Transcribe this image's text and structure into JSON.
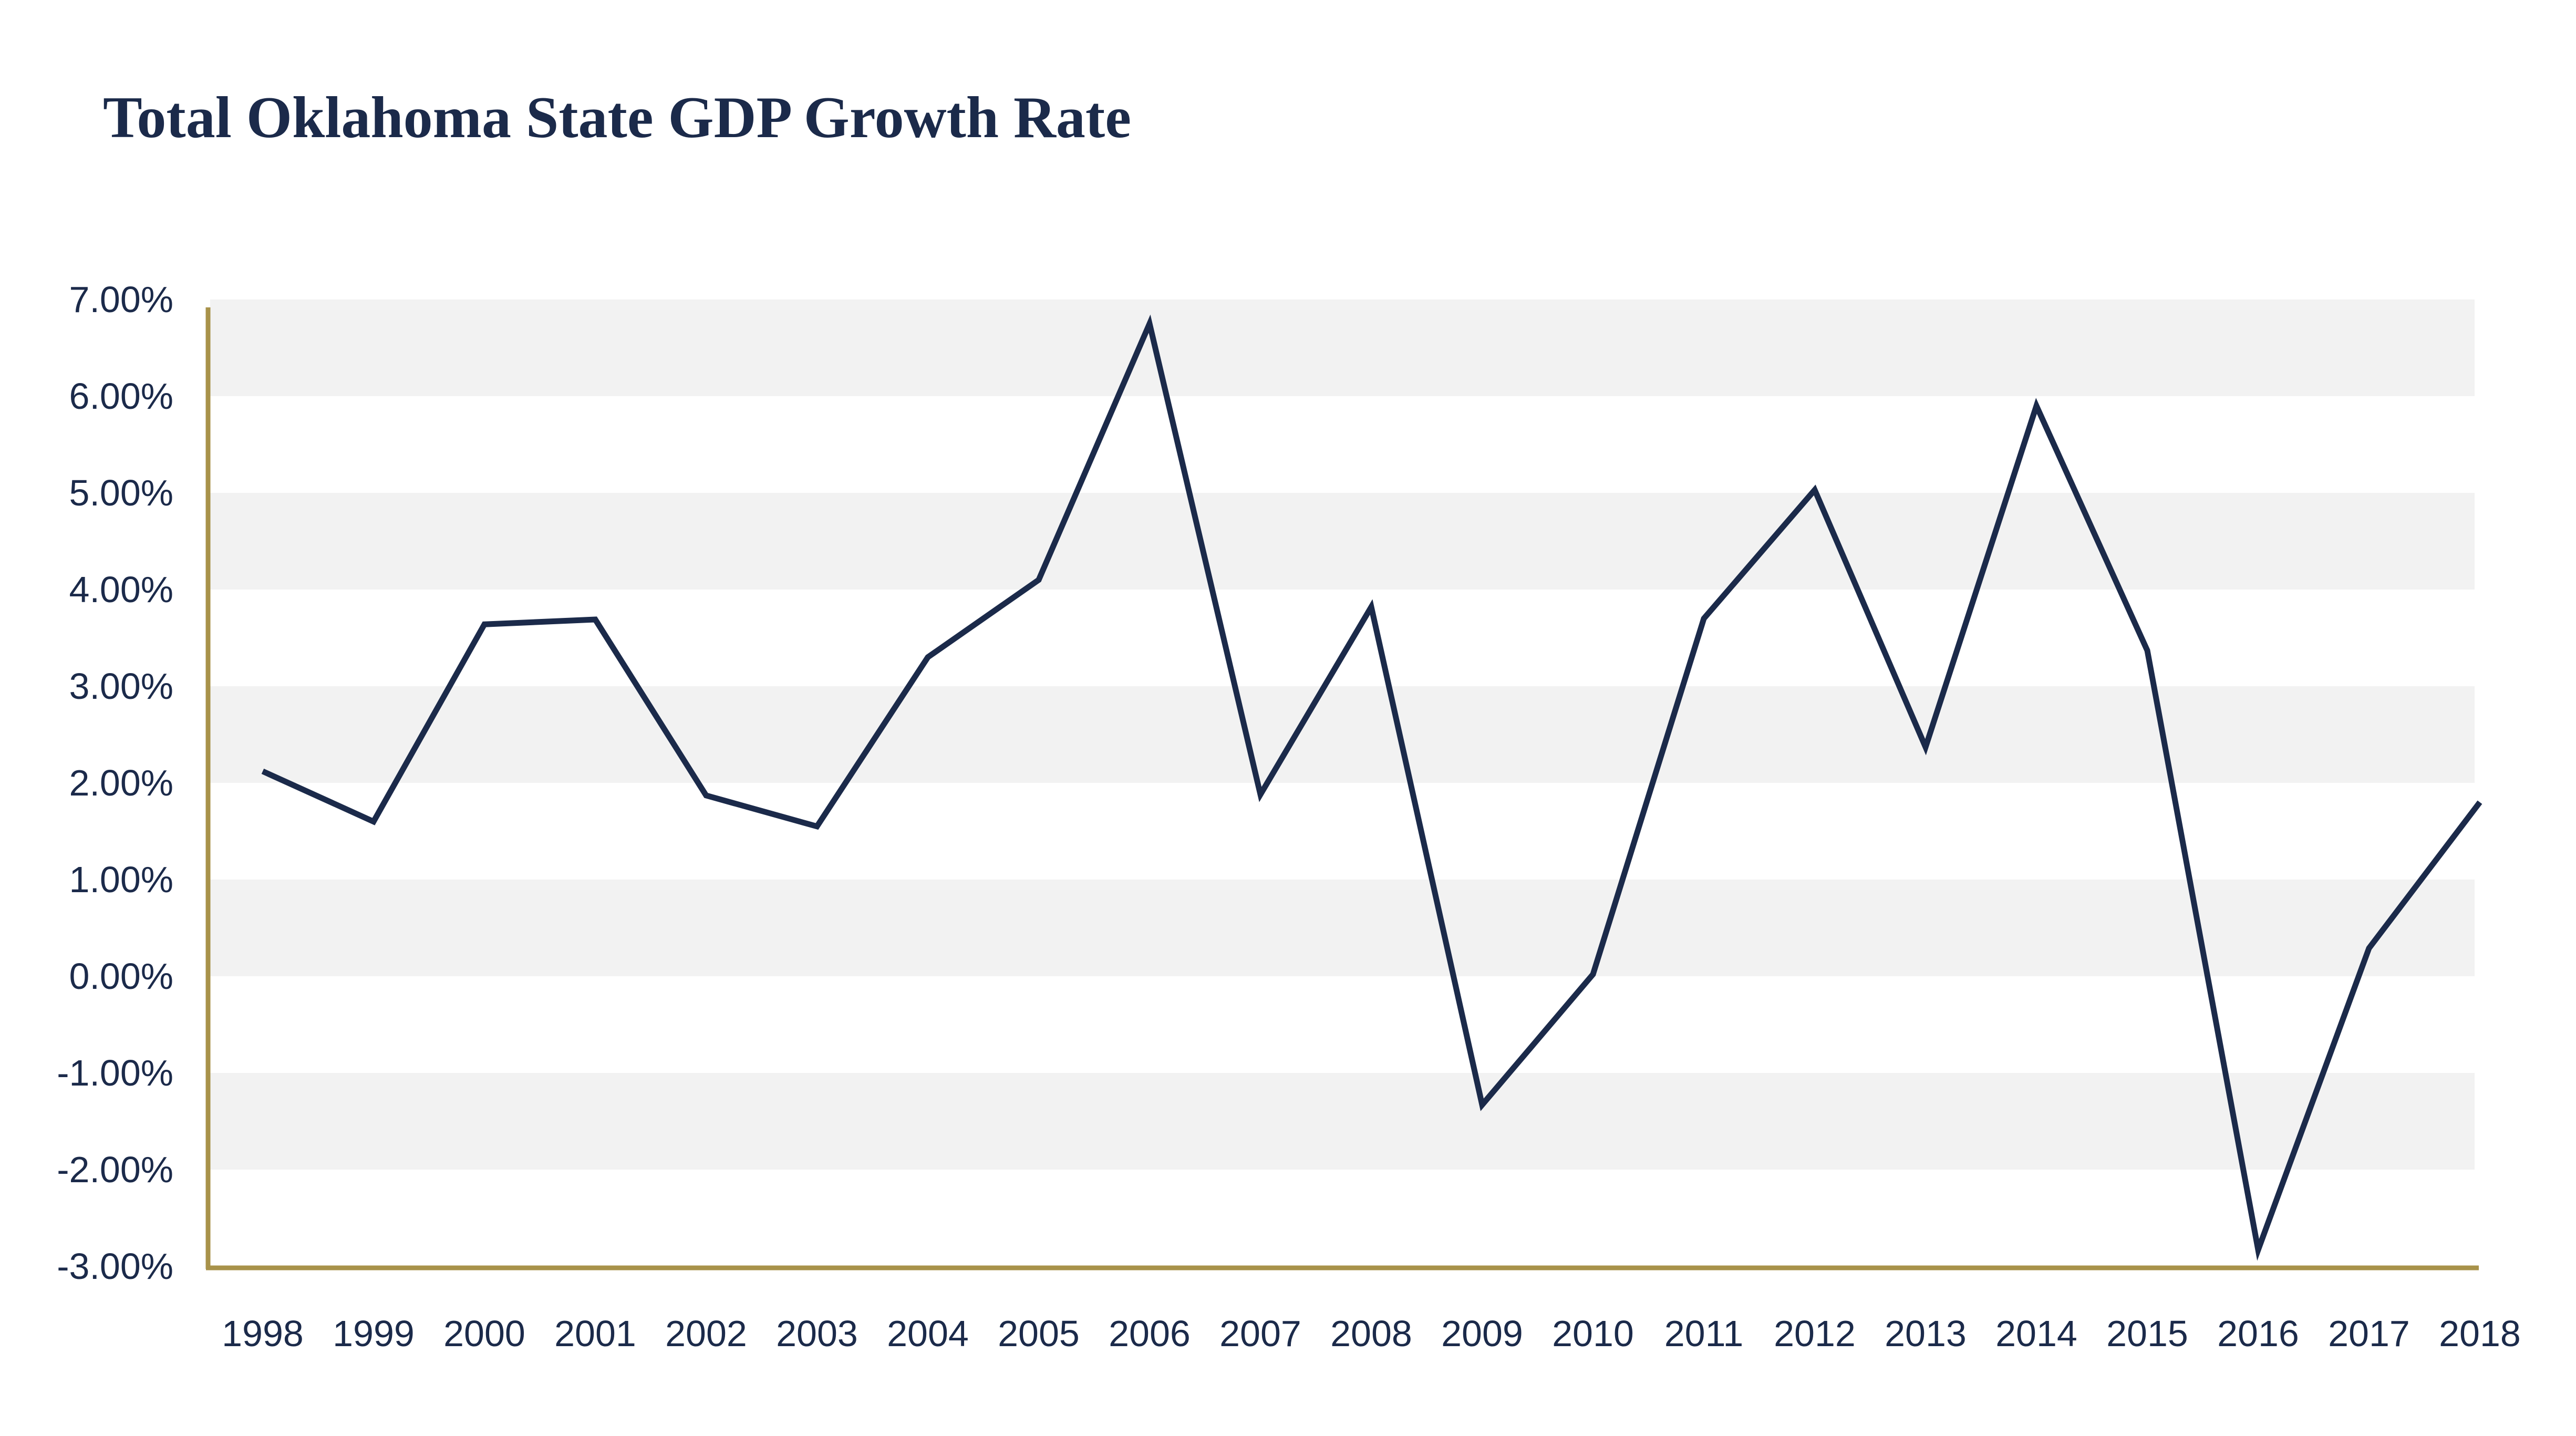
{
  "chart_data": {
    "type": "line",
    "title": "Total Oklahoma State GDP Growth Rate",
    "xlabel": "",
    "ylabel": "",
    "categories": [
      "1998",
      "1999",
      "2000",
      "2001",
      "2002",
      "2003",
      "2004",
      "2005",
      "2006",
      "2007",
      "2008",
      "2009",
      "2010",
      "2011",
      "2012",
      "2013",
      "2014",
      "2015",
      "2016",
      "2017",
      "2018"
    ],
    "series": [
      {
        "values": [
          2.12,
          1.6,
          3.64,
          3.69,
          1.87,
          1.55,
          3.3,
          4.1,
          6.75,
          1.88,
          3.82,
          -1.33,
          0.02,
          3.7,
          5.03,
          2.37,
          5.9,
          3.37,
          -2.83,
          0.29,
          1.8
        ]
      }
    ],
    "ylim": [
      -3,
      7
    ],
    "y_ticks": [
      "7.00%",
      "6.00%",
      "5.00%",
      "4.00%",
      "3.00%",
      "2.00%",
      "1.00%",
      "0.00%",
      "-1.00%",
      "-2.00%",
      "-3.00%"
    ],
    "grid": "alternating horizontal bands",
    "legend": "none",
    "colors": {
      "line": "#1b2a4a",
      "axis": "#a8924a",
      "band": "#f2f2f2",
      "text": "#1b2a4a"
    }
  }
}
